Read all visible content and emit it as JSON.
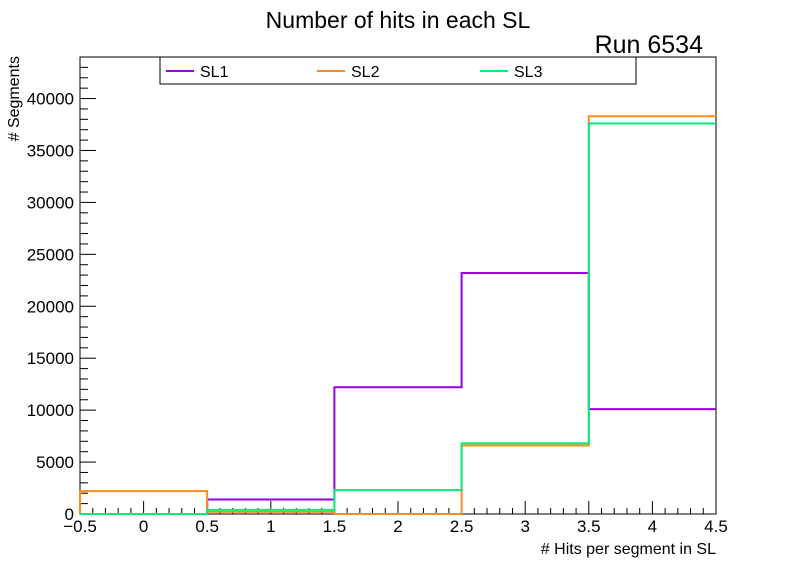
{
  "chart_data": {
    "type": "step",
    "title": "Number of hits in each SL",
    "annotation": "Run 6534",
    "xlabel": "# Hits per segment in SL",
    "ylabel": "# Segments",
    "xlim": [
      -0.5,
      4.5
    ],
    "ylim": [
      0,
      44000
    ],
    "grid": false,
    "legend_position": "top",
    "x_ticks": [
      "−0.5",
      "0",
      "0.5",
      "1",
      "1.5",
      "2",
      "2.5",
      "3",
      "3.5",
      "4",
      "4.5"
    ],
    "x_tick_values": [
      -0.5,
      0,
      0.5,
      1,
      1.5,
      2,
      2.5,
      3,
      3.5,
      4,
      4.5
    ],
    "y_ticks": [
      "0",
      "5000",
      "10000",
      "15000",
      "20000",
      "25000",
      "30000",
      "35000",
      "40000"
    ],
    "y_tick_values": [
      0,
      5000,
      10000,
      15000,
      20000,
      25000,
      30000,
      35000,
      40000
    ],
    "bin_edges": [
      -0.5,
      0.5,
      1.5,
      2.5,
      3.5,
      4.5
    ],
    "series": [
      {
        "name": "SL1",
        "color": "#9a00e0",
        "values": [
          0,
          1400,
          12200,
          23200,
          10100
        ]
      },
      {
        "name": "SL2",
        "color": "#ff8c1a",
        "values": [
          2200,
          200,
          0,
          6600,
          38300
        ]
      },
      {
        "name": "SL3",
        "color": "#00ee77",
        "values": [
          0,
          400,
          2300,
          6800,
          37600
        ]
      }
    ]
  }
}
